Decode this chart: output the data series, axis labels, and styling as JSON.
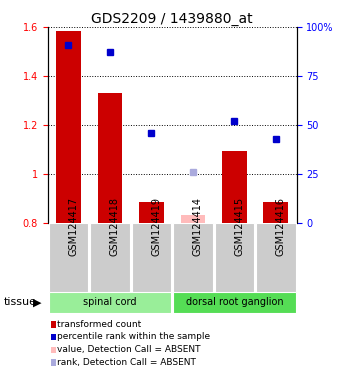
{
  "title": "GDS2209 / 1439880_at",
  "samples": [
    "GSM124417",
    "GSM124418",
    "GSM124419",
    "GSM124414",
    "GSM124415",
    "GSM124416"
  ],
  "bar_values": [
    1.585,
    1.33,
    0.885,
    null,
    1.095,
    0.885
  ],
  "bar_absent_values": [
    null,
    null,
    null,
    0.83,
    null,
    null
  ],
  "percentile_values": [
    91,
    87,
    46,
    null,
    52,
    43
  ],
  "percentile_absent_values": [
    null,
    null,
    null,
    26,
    null,
    null
  ],
  "bar_color": "#cc0000",
  "bar_absent_color": "#ffbbbb",
  "dot_color": "#0000cc",
  "dot_absent_color": "#aaaadd",
  "ylim_left": [
    0.8,
    1.6
  ],
  "ylim_right": [
    0,
    100
  ],
  "yticks_left": [
    0.8,
    1.0,
    1.2,
    1.4,
    1.6
  ],
  "ytick_labels_left": [
    "0.8",
    "1",
    "1.2",
    "1.4",
    "1.6"
  ],
  "yticks_right": [
    0,
    25,
    50,
    75,
    100
  ],
  "ytick_labels_right": [
    "0",
    "25",
    "50",
    "75",
    "100%"
  ],
  "tissue_groups": [
    {
      "label": "spinal cord",
      "spans": [
        0,
        1,
        2
      ],
      "color": "#99ee99"
    },
    {
      "label": "dorsal root ganglion",
      "spans": [
        3,
        4,
        5
      ],
      "color": "#55dd55"
    }
  ],
  "tissue_label": "tissue",
  "legend_items": [
    {
      "color": "#cc0000",
      "label": "transformed count"
    },
    {
      "color": "#0000cc",
      "label": "percentile rank within the sample"
    },
    {
      "color": "#ffbbbb",
      "label": "value, Detection Call = ABSENT"
    },
    {
      "color": "#aaaadd",
      "label": "rank, Detection Call = ABSENT"
    }
  ],
  "bg_color": "#cccccc",
  "bar_width": 0.6,
  "title_fontsize": 10,
  "tick_fontsize": 7,
  "label_fontsize": 7
}
